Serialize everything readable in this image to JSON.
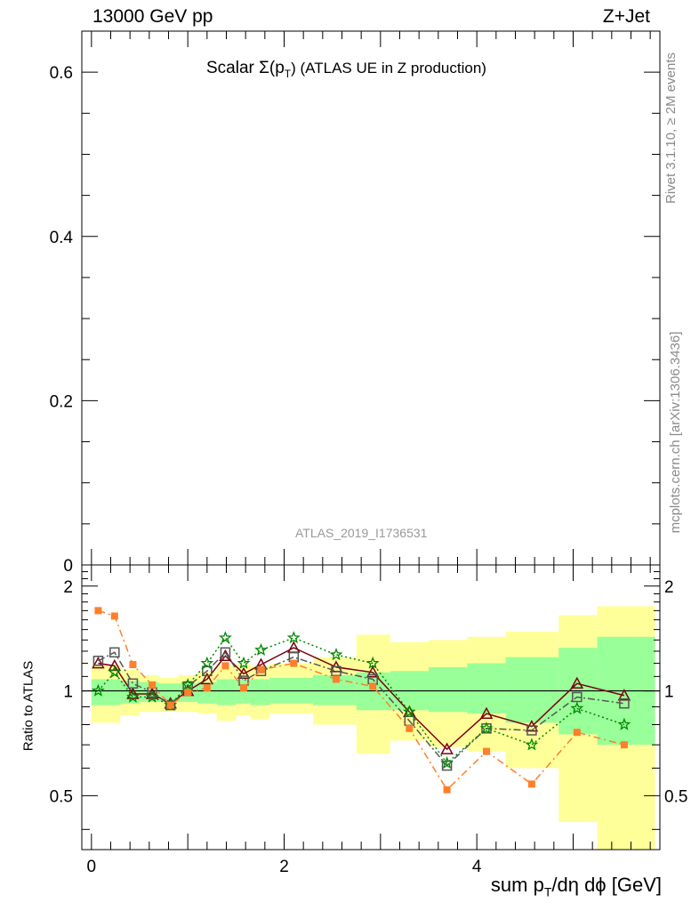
{
  "header": {
    "energy_label": "13000 GeV pp",
    "process_label": "Z+Jet"
  },
  "side_labels": {
    "rivet": "Rivet 3.1.10, ≥ 2M events",
    "mcplots": "mcplots.cern.ch [arXiv:1306.3436]"
  },
  "chart_data": [
    {
      "type": "line",
      "title": "Scalar Σ(pT) (ATLAS UE in Z production)",
      "title_main": "Scalar Σ(p",
      "title_sub": "T",
      "title_rest": ") (ATLAS UE in Z production)",
      "watermark": "ATLAS_2019_I1736531",
      "xlim": [
        -0.1,
        5.9
      ],
      "ylim": [
        0,
        0.65
      ],
      "y_ticks": [
        0,
        0.2,
        0.4,
        0.6
      ],
      "y_tick_labels": [
        "0",
        "0.2",
        "0.4",
        "0.6"
      ],
      "series": []
    },
    {
      "type": "line",
      "ylabel": "Ratio to ATLAS",
      "xlabel_main": "sum p",
      "xlabel_sub": "T",
      "xlabel_rest": "/dη dϕ [GeV]",
      "xlim": [
        -0.1,
        5.9
      ],
      "ylim": [
        0.35,
        2.3
      ],
      "log_y": true,
      "x_ticks": [
        0,
        2,
        4
      ],
      "x_tick_labels": [
        "0",
        "2",
        "4"
      ],
      "y_ticks": [
        0.5,
        1,
        2
      ],
      "y_tick_labels": [
        "0.5",
        "1",
        "2"
      ],
      "reference_line": 1,
      "bands": {
        "edges": [
          0,
          0.15,
          0.3,
          0.5,
          0.7,
          0.9,
          1.1,
          1.3,
          1.5,
          1.65,
          1.85,
          2.3,
          2.75,
          3.1,
          3.5,
          3.9,
          4.3,
          4.85,
          5.25,
          5.85
        ],
        "inner_lo": [
          0.91,
          0.91,
          0.92,
          0.93,
          0.93,
          0.93,
          0.92,
          0.91,
          0.92,
          0.91,
          0.92,
          0.91,
          0.88,
          0.88,
          0.87,
          0.86,
          0.81,
          0.75,
          0.7
        ],
        "inner_hi": [
          1.08,
          1.08,
          1.07,
          1.06,
          1.05,
          1.05,
          1.06,
          1.08,
          1.08,
          1.08,
          1.09,
          1.11,
          1.13,
          1.14,
          1.17,
          1.2,
          1.25,
          1.33,
          1.43
        ],
        "outer_lo": [
          0.81,
          0.81,
          0.85,
          0.87,
          0.87,
          0.87,
          0.86,
          0.82,
          0.85,
          0.83,
          0.86,
          0.8,
          0.66,
          0.72,
          0.69,
          0.67,
          0.6,
          0.42,
          0.34
        ],
        "outer_hi": [
          1.19,
          1.19,
          1.15,
          1.11,
          1.09,
          1.11,
          1.14,
          1.18,
          1.19,
          1.18,
          1.2,
          1.25,
          1.45,
          1.38,
          1.4,
          1.43,
          1.48,
          1.65,
          1.75
        ],
        "inner_color": "#99ff99",
        "outer_color": "#ffff99"
      },
      "x": [
        0.07,
        0.24,
        0.43,
        0.63,
        0.82,
        1.0,
        1.2,
        1.39,
        1.58,
        1.76,
        2.1,
        2.54,
        2.92,
        3.3,
        3.69,
        4.1,
        4.57,
        5.04,
        5.53
      ],
      "series": [
        {
          "color": "#7a0010",
          "marker": "triangle",
          "dash": "",
          "values": [
            1.2,
            1.18,
            0.98,
            0.98,
            0.92,
            1.0,
            1.08,
            1.26,
            1.12,
            1.19,
            1.33,
            1.17,
            1.13,
            0.87,
            0.68,
            0.86,
            0.79,
            1.05,
            0.97
          ]
        },
        {
          "color": "#555555",
          "marker": "square",
          "dash": "8,3,2,3",
          "values": [
            1.22,
            1.29,
            1.05,
            0.99,
            0.91,
            1.03,
            1.14,
            1.29,
            1.07,
            1.14,
            1.25,
            1.14,
            1.08,
            0.82,
            0.61,
            0.78,
            0.77,
            0.96,
            0.92
          ]
        },
        {
          "color": "#008800",
          "marker": "star",
          "dash": "2,3",
          "values": [
            1.0,
            1.13,
            0.96,
            0.96,
            0.91,
            1.04,
            1.2,
            1.42,
            1.2,
            1.31,
            1.42,
            1.27,
            1.2,
            0.87,
            0.62,
            0.78,
            0.7,
            0.89,
            0.8
          ]
        },
        {
          "color": "#ff7f2a",
          "marker": "filled-square",
          "dash": "8,4,2,4",
          "values": [
            1.7,
            1.64,
            1.19,
            1.04,
            0.91,
            0.99,
            1.02,
            1.18,
            1.02,
            1.15,
            1.2,
            1.08,
            1.03,
            0.78,
            0.52,
            0.67,
            0.54,
            0.76,
            0.7
          ]
        }
      ]
    }
  ]
}
